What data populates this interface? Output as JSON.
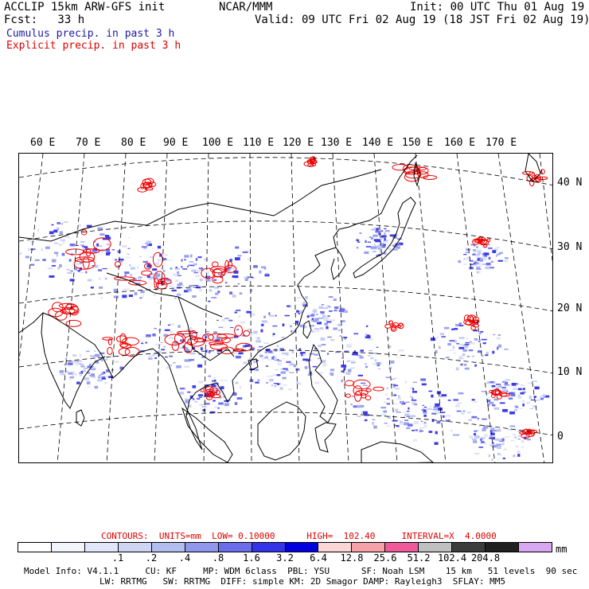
{
  "header": {
    "title": "ACCLIP 15km ARW-GFS init",
    "center": "NCAR/MMM",
    "init": "Init: 00 UTC Thu 01 Aug 19",
    "fcst": "Fcst:   33 h",
    "valid": "Valid: 09 UTC Fri 02 Aug 19 (18 JST Fri 02 Aug 19)",
    "legend_cumulus": "Cumulus precip. in past 3 h",
    "legend_explicit": "Explicit precip. in past 3 h"
  },
  "map": {
    "lon_labels": [
      "60 E",
      "70 E",
      "80 E",
      "90 E",
      "100 E",
      "110 E",
      "120 E",
      "130 E",
      "140 E",
      "150 E",
      "160 E",
      "170 E"
    ],
    "lat_labels": [
      "40 N",
      "30 N",
      "20 N",
      "10 N",
      "0"
    ],
    "colors": {
      "cumulus": "#3333dd",
      "explicit": "#ee0000",
      "coast": "#000000",
      "grid": "#000000"
    }
  },
  "contours": {
    "text": "CONTOURS:  UNITS=mm  LOW= 0.10000      HIGH=  102.40     INTERVAL=X  4.0000"
  },
  "colorbar": {
    "unit": "mm",
    "colors": [
      "#ffffff",
      "#f2f4fb",
      "#e2e6f8",
      "#cfd6f4",
      "#b4bdf0",
      "#9297ee",
      "#6b6dea",
      "#3333e8",
      "#0000e0",
      "#fcd6d6",
      "#f7a2a8",
      "#ef5a9a",
      "#c0c0c0",
      "#3c3c3c",
      "#202020",
      "#d8a8f0"
    ],
    "tick_labels": [
      ".1",
      ".2",
      ".4",
      ".8",
      "1.6",
      "3.2",
      "6.4",
      "12.8",
      "25.6",
      "51.2",
      "102.4",
      "204.8"
    ]
  },
  "footer": {
    "line1": "Model Info: V4.1.1     CU: KF     MP: WDM 6class  PBL: YSU      SF: Noah LSM    15 km   51 levels  90 sec",
    "line2": "LW: RRTMG   SW: RRTMG  DIFF: simple KM: 2D Smagor DAMP: Rayleigh3  SFLAY: MM5"
  }
}
